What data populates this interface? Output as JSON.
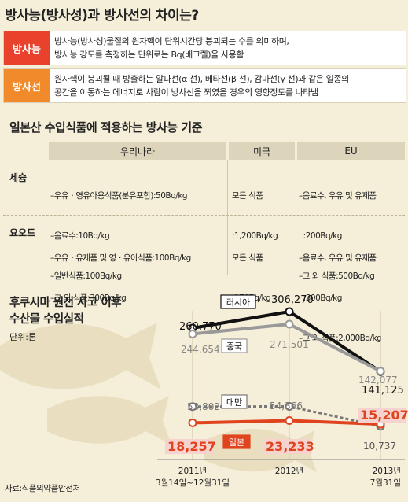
{
  "title": "방사능(방사성)과 방사선의 차이는?",
  "definitions": [
    {
      "term": "방사능",
      "color": "#e8412c",
      "lines": [
        "방사능(방사성)물질의 원자핵이 단위시간당 붕괴되는 수를 의미하며,",
        "방사능 강도를 측정하는 단위로는 Bq(베크렐)을 사용함"
      ]
    },
    {
      "term": "방사선",
      "color": "#f08a2a",
      "lines": [
        "원자핵이 붕괴될 때 방출하는 알파선(α 선), 베타선(β 선), 감마선(γ 선)과 같은 일종의",
        "공간을 이동하는 에너지로 사람이 방사선을 쬐였을 경우의 영향정도를 나타냄"
      ]
    }
  ],
  "standards": {
    "title": "일본산 수입식품에 적용하는 방사능 기준",
    "columns": [
      "우리나라",
      "미국",
      "EU"
    ],
    "rows": [
      {
        "label": "세슘",
        "cells": [
          [
            "–우유ㆍ영유아용식품(분유포함):50Bq/kg",
            "–음료수:10Bq/kg",
            "–일반식품:100Bq/kg"
          ],
          [
            "모든 식품",
            ":1,200Bq/kg"
          ],
          [
            "–음료수, 우유 및 유제품",
            "  :200Bq/kg",
            "–그 외 식품:500Bq/kg"
          ]
        ]
      },
      {
        "label": "요오드",
        "cells": [
          [
            "–우유ㆍ유제품 및 영ㆍ유아식품:100Bq/kg",
            "–그 외 식품:300Bq/kg"
          ],
          [
            "모든 식품",
            ":170Bq/kg"
          ],
          [
            "–음료수, 우유 및 유제품",
            "  :300Bq/kg",
            "–그 외 식품:2,000Bq/kg"
          ]
        ]
      }
    ]
  },
  "chart_data": {
    "type": "line",
    "title": "후쿠시마 원전 사고 이후\n수산물 수입실적",
    "unit": "단위:톤",
    "x": [
      "2011년\n3월14일~12월31일",
      "2012년",
      "2013년\n7월31일"
    ],
    "series": [
      {
        "name": "러시아",
        "values": [
          260770,
          306270,
          141125
        ],
        "labels": [
          "260,770",
          "306,270",
          "141,125"
        ],
        "color": "#111111",
        "style": "solid"
      },
      {
        "name": "중국",
        "values": [
          244654,
          271501,
          142077
        ],
        "labels": [
          "244,654",
          "271,501",
          "142,077"
        ],
        "color": "#999999",
        "style": "solid"
      },
      {
        "name": "대만",
        "values": [
          53802,
          54366,
          10737
        ],
        "labels": [
          "53,802",
          "54,366",
          "10,737"
        ],
        "color": "#777777",
        "style": "dashed"
      },
      {
        "name": "일본",
        "values": [
          18257,
          23233,
          15207
        ],
        "labels": [
          "18,257",
          "23,233",
          "15,207"
        ],
        "color": "#e0441e",
        "style": "solid"
      }
    ]
  },
  "source": "자료:식품의약품안전처"
}
